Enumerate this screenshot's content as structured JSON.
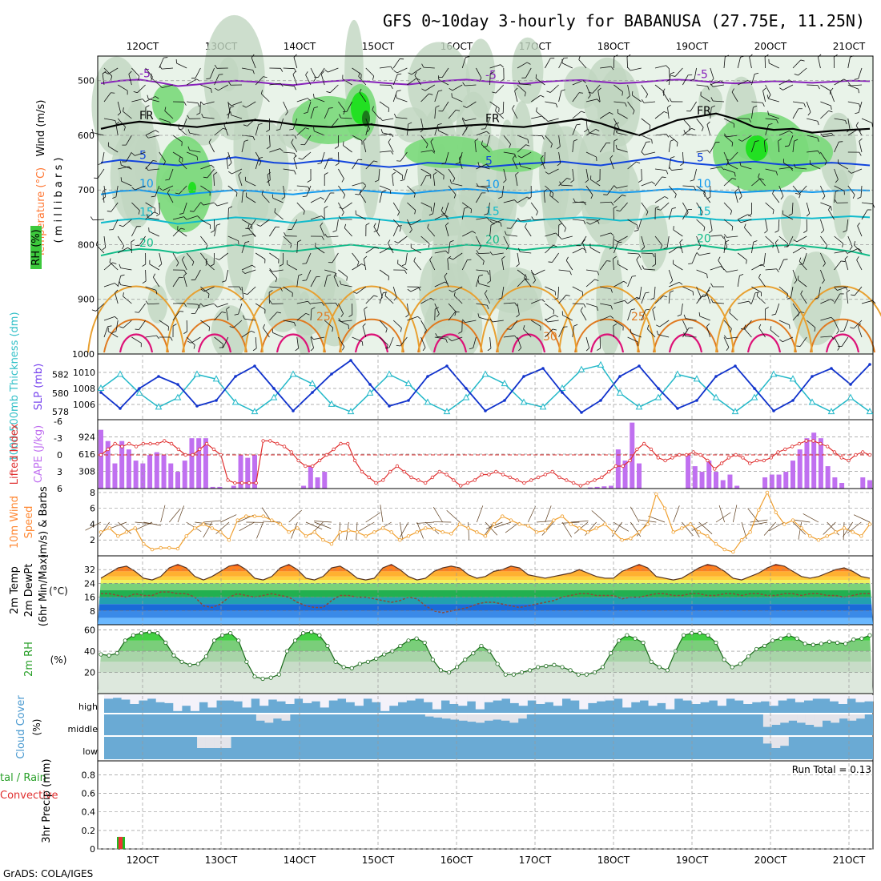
{
  "title": "GFS 0~10day 3-hourly for BABANUSA (27.75E, 11.25N)",
  "footer": "GrADS: COLA/IGES",
  "colors": {
    "rh_light": "#e6f2e6",
    "rh_mid": "#c0d6c0",
    "rh_green": "#7ad97a",
    "rh_bright": "#22e022",
    "rh_dark": "#1a7a1a",
    "slp": "#1133cc",
    "thickness": "#22b8c8",
    "li": "#e03030",
    "cape": "#c070f0",
    "wind10": "#f0a030",
    "rh2m": "#3aaa3a",
    "cloud": "#6aaad4",
    "precip_total": "#22bb22",
    "precip_conv": "#ee3333"
  },
  "x_axis": {
    "top_labels": [
      "12OCT",
      "13OCT",
      "14OCT",
      "15OCT",
      "16OCT",
      "17OCT",
      "18OCT",
      "19OCT",
      "20OCT",
      "21OCT"
    ],
    "bottom_labels": [
      "12OCT",
      "13OCT",
      "14OCT",
      "15OCT",
      "16OCT",
      "17OCT",
      "18OCT",
      "19OCT",
      "20OCT",
      "21OCT"
    ]
  },
  "panel_labels": {
    "upper": [
      "Wind (m/s)",
      "Temperature (°C)",
      "RH (%)"
    ],
    "upper_unit": "( m i l l i b a r s )",
    "slp": "SLP (mb)",
    "thickness": "1000-500mb Thickness (dm)",
    "lifted": "Lifted Index",
    "cape": "CAPE (J/kg)",
    "wind10": "10m Wind",
    "speed": "Speed",
    "barbs": "(m/s) & Barbs",
    "temp2m": "2m Temp",
    "dew2m": "2m DewPt",
    "minmax": "(6hr Min/Max)",
    "tempunit": "(°C)",
    "rh2m": "2m RH",
    "rhunit": "(%)",
    "cloud": "Cloud Cover",
    "cloudunit": "(%)",
    "precip_a": "tal / Rain",
    "precip_b": "Convective",
    "precip_unit": "3hr Precip (mm)",
    "cloud_levels": [
      "high",
      "middle",
      "low"
    ],
    "run_total": "Run Total = 0.13"
  },
  "chart_data": [
    {
      "type": "contour",
      "name": "upper-air cross section",
      "y_ticks": [
        500,
        600,
        700,
        800,
        900,
        1000
      ],
      "ylim": [
        455,
        1000
      ],
      "ylabel": "(millibars)",
      "contour_labels": [
        "-5",
        "FR",
        "5",
        "10",
        "15",
        "20",
        "25",
        "30"
      ],
      "temperature_levels": [
        {
          "label": "-5",
          "values": [
            505,
            500,
            498,
            503,
            510,
            507,
            503,
            500,
            502,
            506,
            508,
            504,
            501,
            499,
            502,
            505,
            507,
            503,
            500,
            498,
            501,
            504,
            506,
            502,
            500,
            499,
            502,
            505,
            503,
            500,
            498,
            500,
            503,
            505,
            503,
            501,
            502,
            504,
            502,
            500,
            501
          ]
        },
        {
          "label": "FR",
          "values": [
            588,
            580,
            575,
            578,
            582,
            585,
            580,
            576,
            572,
            575,
            580,
            583,
            585,
            582,
            580,
            584,
            590,
            588,
            585,
            582,
            580,
            583,
            585,
            580,
            575,
            570,
            578,
            590,
            600,
            585,
            572,
            566,
            560,
            570,
            585,
            590,
            588,
            595,
            592,
            590,
            588
          ]
        },
        {
          "label": "5",
          "values": [
            650,
            645,
            648,
            652,
            655,
            650,
            645,
            640,
            645,
            650,
            652,
            648,
            645,
            650,
            655,
            658,
            655,
            650,
            652,
            655,
            658,
            655,
            652,
            650,
            648,
            652,
            655,
            650,
            645,
            640,
            648,
            652,
            655,
            650,
            648,
            652,
            655,
            652,
            650,
            652,
            655
          ]
        },
        {
          "label": "10",
          "values": [
            708,
            702,
            700,
            705,
            710,
            706,
            703,
            700,
            702,
            706,
            708,
            704,
            701,
            699,
            702,
            705,
            707,
            703,
            700,
            698,
            701,
            704,
            706,
            702,
            700,
            699,
            702,
            705,
            703,
            700,
            698,
            700,
            703,
            705,
            703,
            701,
            702,
            704,
            702,
            700,
            701
          ]
        },
        {
          "label": "15",
          "values": [
            760,
            755,
            752,
            756,
            762,
            758,
            754,
            750,
            752,
            756,
            760,
            756,
            752,
            750,
            752,
            756,
            760,
            756,
            752,
            748,
            750,
            754,
            758,
            754,
            752,
            750,
            752,
            756,
            754,
            750,
            748,
            750,
            754,
            756,
            754,
            752,
            750,
            752,
            750,
            748,
            750
          ]
        },
        {
          "label": "20",
          "values": [
            820,
            812,
            808,
            810,
            815,
            810,
            805,
            800,
            805,
            810,
            812,
            808,
            804,
            800,
            804,
            808,
            812,
            808,
            805,
            800,
            802,
            806,
            810,
            806,
            804,
            800,
            802,
            808,
            812,
            810,
            805,
            800,
            805,
            810,
            806,
            802,
            800,
            804,
            808,
            812,
            820
          ]
        }
      ]
    },
    {
      "type": "line",
      "name": "SLP and thickness",
      "slp_ticks": [
        1006,
        1008,
        1010
      ],
      "thickness_ticks": [
        578,
        580,
        582
      ],
      "slp": [
        1007.5,
        1005.5,
        1008.0,
        1009.5,
        1008.5,
        1005.8,
        1006.5,
        1009.5,
        1010.8,
        1008.0,
        1005.2,
        1007.5,
        1009.8,
        1011.5,
        1008.5,
        1005.8,
        1006.5,
        1009.5,
        1010.8,
        1008.0,
        1005.2,
        1006.5,
        1009.5,
        1010.5,
        1007.5,
        1005.0,
        1006.5,
        1009.5,
        1010.8,
        1008.0,
        1005.5,
        1006.5,
        1009.5,
        1010.8,
        1008.0,
        1005.2,
        1006.5,
        1009.5,
        1010.5,
        1008.5,
        1011.0
      ],
      "thickness": [
        580.5,
        582.0,
        580.0,
        578.5,
        579.5,
        582.0,
        581.5,
        579.0,
        578.0,
        579.5,
        582.0,
        581.0,
        578.8,
        578.0,
        580.0,
        582.0,
        581.0,
        579.0,
        578.0,
        579.5,
        582.0,
        581.0,
        579.0,
        578.5,
        580.5,
        582.5,
        583.0,
        580.0,
        578.5,
        579.5,
        582.0,
        581.5,
        579.5,
        578.0,
        579.5,
        582.0,
        581.5,
        579.0,
        578.0,
        579.5,
        578.0
      ]
    },
    {
      "type": "bar+line",
      "name": "CAPE and Lifted Index",
      "cape_ticks": [
        308,
        616,
        924
      ],
      "li_ticks": [
        -6,
        -3,
        0,
        3,
        6
      ],
      "cape": [
        1050,
        850,
        450,
        850,
        700,
        500,
        450,
        600,
        650,
        600,
        450,
        300,
        500,
        900,
        900,
        900,
        30,
        30,
        0,
        50,
        600,
        550,
        600,
        0,
        0,
        0,
        0,
        0,
        0,
        50,
        400,
        200,
        300,
        0,
        0,
        0,
        0,
        0,
        0,
        0,
        0,
        0,
        0,
        0,
        0,
        0,
        0,
        0,
        0,
        0,
        0,
        0,
        0,
        0,
        0,
        0,
        0,
        0,
        0,
        0,
        0,
        0,
        0,
        0,
        0,
        0,
        0,
        0,
        0,
        0,
        20,
        30,
        40,
        50,
        700,
        500,
        1180,
        450,
        0,
        0,
        0,
        0,
        0,
        0,
        600,
        400,
        300,
        500,
        300,
        150,
        250,
        50,
        0,
        0,
        0,
        200,
        250,
        250,
        300,
        500,
        700,
        900,
        1000,
        900,
        400,
        200,
        100,
        0,
        0,
        200,
        150
      ],
      "lifted_index": [
        0,
        -1,
        -2,
        -1.5,
        -2,
        -1.5,
        -2,
        -2,
        -2,
        -2.5,
        -2,
        -1,
        0,
        0,
        -1,
        -2,
        -1,
        0,
        4.5,
        5,
        5,
        5,
        5,
        -2.5,
        -2.5,
        -2,
        -1.5,
        -0.5,
        1,
        2,
        2,
        1,
        0,
        -1,
        -2,
        -2,
        1,
        3,
        4,
        5,
        4.5,
        3,
        2,
        3,
        4,
        4.5,
        5,
        4,
        3,
        3.5,
        4.5,
        5.5,
        5,
        4.5,
        3.5,
        3.5,
        3,
        3.5,
        4,
        4.5,
        5,
        4.5,
        4,
        3.5,
        3,
        4,
        4.5,
        5,
        5.5,
        5,
        4.5,
        4,
        3,
        2,
        2,
        1,
        -1,
        -2,
        -1,
        0.5,
        1,
        0.5,
        0,
        0,
        -0.5,
        0,
        1,
        2.5,
        1.5,
        0.5,
        0,
        0.5,
        1.5,
        1,
        1,
        0.5,
        -0.5,
        -1,
        -1.5,
        -2,
        -2.5,
        -2.5,
        -2,
        -1.5,
        -0.5,
        0.5,
        1,
        0,
        -0.5,
        0
      ]
    },
    {
      "type": "line",
      "name": "10m wind speed",
      "y_ticks": [
        2,
        4,
        6,
        8
      ],
      "ylim": [
        0,
        8.5
      ],
      "speed": [
        3,
        3.5,
        2.5,
        3,
        3.5,
        1.5,
        0.8,
        1,
        1,
        0.9,
        2.5,
        3.5,
        4,
        3.5,
        3,
        2,
        4.5,
        5,
        5,
        5,
        4.5,
        4,
        3,
        3.5,
        2.5,
        3,
        2,
        1.5,
        3,
        3.2,
        3,
        2.5,
        3,
        3.5,
        3,
        2,
        2.5,
        3,
        3.5,
        3.4,
        3,
        2.8,
        4,
        3.5,
        3,
        2.5,
        4,
        5,
        4.5,
        4,
        3.8,
        3,
        3.2,
        4.5,
        5,
        4,
        3.5,
        3,
        3.5,
        4,
        3,
        2,
        2.2,
        3,
        4,
        7.8,
        6,
        3,
        3.5,
        4,
        3,
        2.5,
        1.5,
        0.8,
        0.5,
        2,
        3,
        5.8,
        8,
        5.5,
        4,
        4.5,
        3.5,
        2.5,
        2,
        2.5,
        3,
        3.5,
        3,
        2.5,
        4
      ]
    },
    {
      "type": "area",
      "name": "2m temperature and dewpoint",
      "y_ticks": [
        8,
        16,
        24,
        32
      ],
      "ylim": [
        0,
        40
      ],
      "temp2m": [
        27,
        30,
        33,
        34,
        31,
        27,
        26,
        28,
        33,
        35,
        33,
        28,
        26,
        28,
        31,
        34,
        35,
        32,
        27,
        26,
        28,
        33,
        35,
        32,
        27,
        26,
        28,
        33,
        34,
        31,
        27,
        26,
        27,
        33,
        35,
        32,
        28,
        26,
        27,
        31,
        33,
        34,
        33,
        29,
        27,
        28,
        31,
        32,
        34,
        33,
        29,
        28,
        27,
        28,
        29,
        30,
        32,
        30,
        28,
        27,
        27,
        31,
        33,
        35,
        33,
        28,
        27,
        26,
        27,
        30,
        33,
        35,
        34,
        31,
        27,
        26,
        28,
        30,
        33,
        35,
        34,
        31,
        28,
        27,
        28,
        30,
        32,
        33,
        31,
        28,
        27
      ],
      "dew2m": [
        18,
        18,
        17,
        16,
        18,
        17,
        17,
        19,
        19,
        18,
        18,
        16,
        11,
        10,
        12,
        16,
        18,
        17,
        16,
        17,
        18,
        17,
        16,
        13,
        11,
        10,
        10,
        14,
        17,
        17,
        16,
        16,
        15,
        14,
        13,
        14,
        16,
        15,
        11,
        8,
        7,
        8,
        9,
        10,
        12,
        13,
        13,
        12,
        11,
        10,
        11,
        12,
        13,
        14,
        16,
        17,
        18,
        18,
        17,
        17,
        17,
        15,
        16,
        16,
        17,
        18,
        18,
        17,
        17,
        18,
        18,
        17,
        17,
        18,
        18,
        17,
        18,
        18,
        17,
        17,
        18,
        18,
        17,
        18,
        18,
        17,
        17,
        16,
        17,
        18,
        18
      ]
    },
    {
      "type": "area",
      "name": "2m relative humidity",
      "y_ticks": [
        20,
        40,
        60
      ],
      "ylim": [
        0,
        65
      ],
      "rh2m": [
        37,
        36,
        38,
        50,
        55,
        57,
        58,
        57,
        48,
        36,
        30,
        27,
        28,
        35,
        50,
        55,
        57,
        50,
        30,
        16,
        14,
        15,
        18,
        40,
        50,
        57,
        58,
        55,
        45,
        30,
        25,
        24,
        28,
        30,
        33,
        37,
        40,
        45,
        50,
        52,
        48,
        32,
        22,
        20,
        25,
        32,
        38,
        45,
        40,
        28,
        18,
        18,
        20,
        22,
        25,
        26,
        27,
        25,
        22,
        18,
        18,
        20,
        25,
        38,
        50,
        55,
        52,
        48,
        30,
        25,
        22,
        40,
        55,
        57,
        57,
        55,
        48,
        32,
        25,
        28,
        35,
        42,
        45,
        50,
        52,
        55,
        52,
        47,
        46,
        47,
        49,
        48,
        47,
        51,
        52,
        55
      ]
    },
    {
      "type": "heatmap",
      "name": "cloud cover",
      "rows": [
        "high",
        "middle",
        "low"
      ],
      "high": [
        20,
        15,
        25,
        50,
        30,
        20,
        40,
        45,
        90,
        60,
        90,
        40,
        70,
        30,
        30,
        35,
        70,
        20,
        60,
        25,
        35,
        50,
        20,
        45,
        35,
        70,
        30,
        20,
        40,
        60,
        20,
        40,
        90,
        60,
        40,
        30,
        20,
        40,
        80,
        30,
        50,
        60,
        35,
        80,
        40,
        30,
        20,
        45,
        60,
        30,
        50,
        40,
        60,
        20,
        30,
        80,
        45,
        35,
        30,
        20,
        70,
        40,
        30,
        60,
        45,
        80,
        20,
        30,
        50,
        40,
        30,
        60,
        20,
        30,
        50,
        40,
        35,
        60,
        30,
        20,
        40,
        30,
        20,
        20,
        35,
        50,
        20,
        40,
        35
      ],
      "middle": [
        0,
        0,
        0,
        0,
        0,
        0,
        0,
        0,
        0,
        0,
        0,
        0,
        0,
        0,
        0,
        0,
        0,
        0,
        30,
        40,
        20,
        30,
        0,
        0,
        0,
        0,
        0,
        0,
        0,
        0,
        0,
        0,
        0,
        0,
        0,
        0,
        0,
        0,
        10,
        15,
        20,
        25,
        30,
        35,
        40,
        30,
        25,
        30,
        40,
        20,
        0,
        0,
        0,
        0,
        0,
        0,
        0,
        0,
        0,
        0,
        0,
        0,
        0,
        0,
        0,
        0,
        0,
        0,
        0,
        0,
        0,
        0,
        0,
        0,
        0,
        0,
        0,
        0,
        60,
        50,
        40,
        30,
        40,
        50,
        60,
        30,
        40,
        20,
        30,
        20,
        0
      ],
      "low": [
        0,
        0,
        0,
        0,
        0,
        0,
        0,
        0,
        0,
        0,
        0,
        50,
        50,
        50,
        50,
        0,
        0,
        0,
        0,
        0,
        0,
        0,
        0,
        0,
        0,
        0,
        0,
        0,
        0,
        0,
        0,
        0,
        0,
        0,
        0,
        0,
        0,
        0,
        0,
        0,
        0,
        0,
        0,
        0,
        0,
        0,
        0,
        0,
        0,
        0,
        0,
        0,
        0,
        0,
        0,
        0,
        0,
        0,
        0,
        0,
        0,
        0,
        0,
        0,
        0,
        0,
        0,
        0,
        0,
        0,
        0,
        0,
        0,
        0,
        0,
        0,
        0,
        0,
        30,
        50,
        40,
        0,
        0,
        0,
        0,
        0,
        0,
        0,
        0,
        0,
        0
      ]
    },
    {
      "type": "bar",
      "name": "3hr precipitation",
      "y_ticks": [
        0,
        0.2,
        0.4,
        0.6,
        0.8
      ],
      "ylim": [
        0,
        0.95
      ],
      "total": [
        0.13
      ],
      "convective": [
        0.13
      ],
      "run_total": 0.13
    }
  ]
}
